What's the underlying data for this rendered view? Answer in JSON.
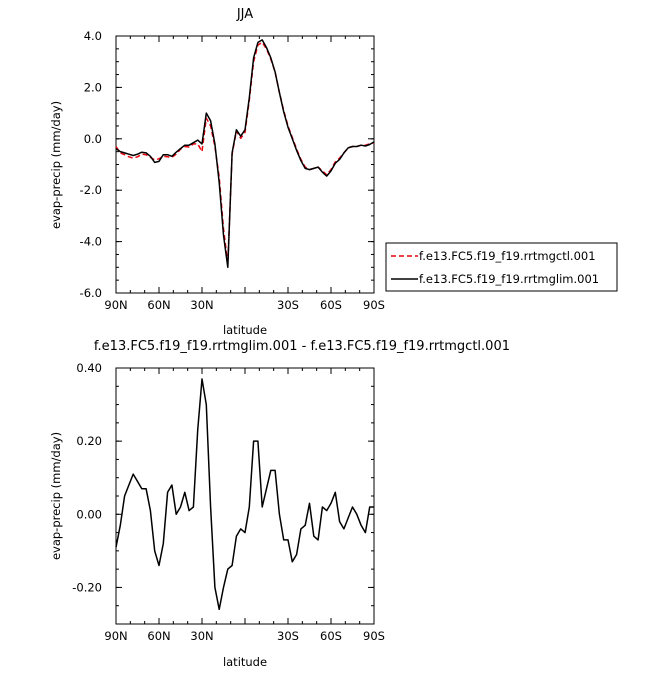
{
  "chart_data": [
    {
      "type": "line",
      "title": "JJA",
      "xlabel": "latitude",
      "ylabel": "evap-precip (mm/day)",
      "xlim": [
        90,
        -90
      ],
      "ylim": [
        -6.0,
        4.0
      ],
      "xticks": [
        90,
        60,
        30,
        0,
        -30,
        -60,
        -90
      ],
      "xtick_labels": [
        "90N",
        "60N",
        "30N",
        "",
        "30S",
        "60S",
        "90S"
      ],
      "yticks": [
        -6,
        -4,
        -2,
        0,
        2,
        4
      ],
      "ytick_labels": [
        "-6.0",
        "-4.0",
        "-2.0",
        "0.0",
        "2.0",
        "4.0"
      ],
      "legend_position": "right",
      "series": [
        {
          "name": "f.e13.FC5.f19_f19.rrtmgctl.001",
          "color": "#e8000b",
          "dash": "dashed",
          "x": [
            90,
            87,
            84,
            81,
            78,
            75,
            72,
            69,
            66,
            63,
            60,
            57,
            54,
            51,
            48,
            45,
            42,
            39,
            36,
            33,
            30,
            27,
            24,
            21,
            18,
            15,
            12,
            9,
            6,
            3,
            0,
            -3,
            -6,
            -9,
            -12,
            -15,
            -18,
            -21,
            -24,
            -27,
            -30,
            -33,
            -36,
            -39,
            -42,
            -45,
            -48,
            -51,
            -54,
            -57,
            -60,
            -63,
            -66,
            -69,
            -72,
            -75,
            -78,
            -81,
            -84,
            -87,
            -90
          ],
          "values": [
            -0.3,
            -0.55,
            -0.62,
            -0.7,
            -0.75,
            -0.7,
            -0.6,
            -0.62,
            -0.72,
            -0.82,
            -0.78,
            -0.68,
            -0.7,
            -0.72,
            -0.6,
            -0.4,
            -0.3,
            -0.32,
            -0.2,
            -0.2,
            -0.5,
            0.8,
            0.5,
            -0.3,
            -1.5,
            -3.5,
            -4.85,
            -0.6,
            0.3,
            0.02,
            0.25,
            1.5,
            3.0,
            3.65,
            3.75,
            3.5,
            3.1,
            2.6,
            1.8,
            1.1,
            0.5,
            0.05,
            -0.4,
            -0.8,
            -1.1,
            -1.2,
            -1.15,
            -1.1,
            -1.25,
            -1.4,
            -1.2,
            -0.9,
            -0.75,
            -0.55,
            -0.35,
            -0.3,
            -0.3,
            -0.25,
            -0.25,
            -0.2,
            -0.15
          ]
        },
        {
          "name": "f.e13.FC5.f19_f19.rrtmglim.001",
          "color": "#000000",
          "dash": "solid",
          "x": [
            90,
            87,
            84,
            81,
            78,
            75,
            72,
            69,
            66,
            63,
            60,
            57,
            54,
            51,
            48,
            45,
            42,
            39,
            36,
            33,
            30,
            27,
            24,
            21,
            18,
            15,
            12,
            9,
            6,
            3,
            0,
            -3,
            -6,
            -9,
            -12,
            -15,
            -18,
            -21,
            -24,
            -27,
            -30,
            -33,
            -36,
            -39,
            -42,
            -45,
            -48,
            -51,
            -54,
            -57,
            -60,
            -63,
            -66,
            -69,
            -72,
            -75,
            -78,
            -81,
            -84,
            -87,
            -90
          ],
          "values": [
            -0.38,
            -0.5,
            -0.55,
            -0.6,
            -0.65,
            -0.6,
            -0.52,
            -0.55,
            -0.68,
            -0.92,
            -0.88,
            -0.62,
            -0.62,
            -0.68,
            -0.52,
            -0.38,
            -0.25,
            -0.25,
            -0.15,
            -0.05,
            -0.2,
            1.0,
            0.7,
            -0.2,
            -1.7,
            -3.75,
            -5.0,
            -0.55,
            0.35,
            0.1,
            0.35,
            1.6,
            3.15,
            3.75,
            3.85,
            3.55,
            3.15,
            2.6,
            1.8,
            1.05,
            0.45,
            0.0,
            -0.45,
            -0.85,
            -1.15,
            -1.2,
            -1.15,
            -1.1,
            -1.3,
            -1.45,
            -1.25,
            -0.95,
            -0.8,
            -0.55,
            -0.35,
            -0.3,
            -0.3,
            -0.25,
            -0.28,
            -0.22,
            -0.12
          ]
        }
      ]
    },
    {
      "type": "line",
      "title": "f.e13.FC5.f19_f19.rrtmglim.001 - f.e13.FC5.f19_f19.rrtmgctl.001",
      "xlabel": "latitude",
      "ylabel": "evap-precip (mm/day)",
      "xlim": [
        90,
        -90
      ],
      "ylim": [
        -0.3,
        0.4
      ],
      "xticks": [
        90,
        60,
        30,
        0,
        -30,
        -60,
        -90
      ],
      "xtick_labels": [
        "90N",
        "60N",
        "30N",
        "",
        "30S",
        "60S",
        "90S"
      ],
      "yticks": [
        -0.2,
        0.0,
        0.2,
        0.4
      ],
      "ytick_labels": [
        "-0.20",
        "0.00",
        "0.20",
        "0.40"
      ],
      "series": [
        {
          "color": "#000000",
          "dash": "solid",
          "x": [
            90,
            87,
            84,
            81,
            78,
            75,
            72,
            69,
            66,
            63,
            60,
            57,
            54,
            51,
            48,
            45,
            42,
            39,
            36,
            33,
            30,
            27,
            24,
            21,
            18,
            15,
            12,
            9,
            6,
            3,
            0,
            -3,
            -6,
            -9,
            -12,
            -15,
            -18,
            -21,
            -24,
            -27,
            -30,
            -33,
            -36,
            -39,
            -42,
            -45,
            -48,
            -51,
            -54,
            -57,
            -60,
            -63,
            -66,
            -69,
            -72,
            -75,
            -78,
            -81,
            -84,
            -87,
            -90
          ],
          "values": [
            -0.09,
            -0.03,
            0.05,
            0.08,
            0.11,
            0.09,
            0.07,
            0.07,
            0.01,
            -0.1,
            -0.14,
            -0.08,
            0.06,
            0.08,
            0.0,
            0.02,
            0.06,
            0.01,
            0.02,
            0.23,
            0.37,
            0.3,
            0.02,
            -0.2,
            -0.26,
            -0.2,
            -0.15,
            -0.14,
            -0.06,
            -0.04,
            -0.05,
            0.02,
            0.2,
            0.2,
            0.02,
            0.07,
            0.12,
            0.12,
            0.0,
            -0.07,
            -0.07,
            -0.13,
            -0.11,
            -0.04,
            -0.03,
            0.03,
            -0.06,
            -0.07,
            0.02,
            0.01,
            0.03,
            0.06,
            -0.02,
            -0.04,
            -0.01,
            0.02,
            0.0,
            -0.03,
            -0.05,
            0.02,
            0.02
          ]
        }
      ]
    }
  ]
}
